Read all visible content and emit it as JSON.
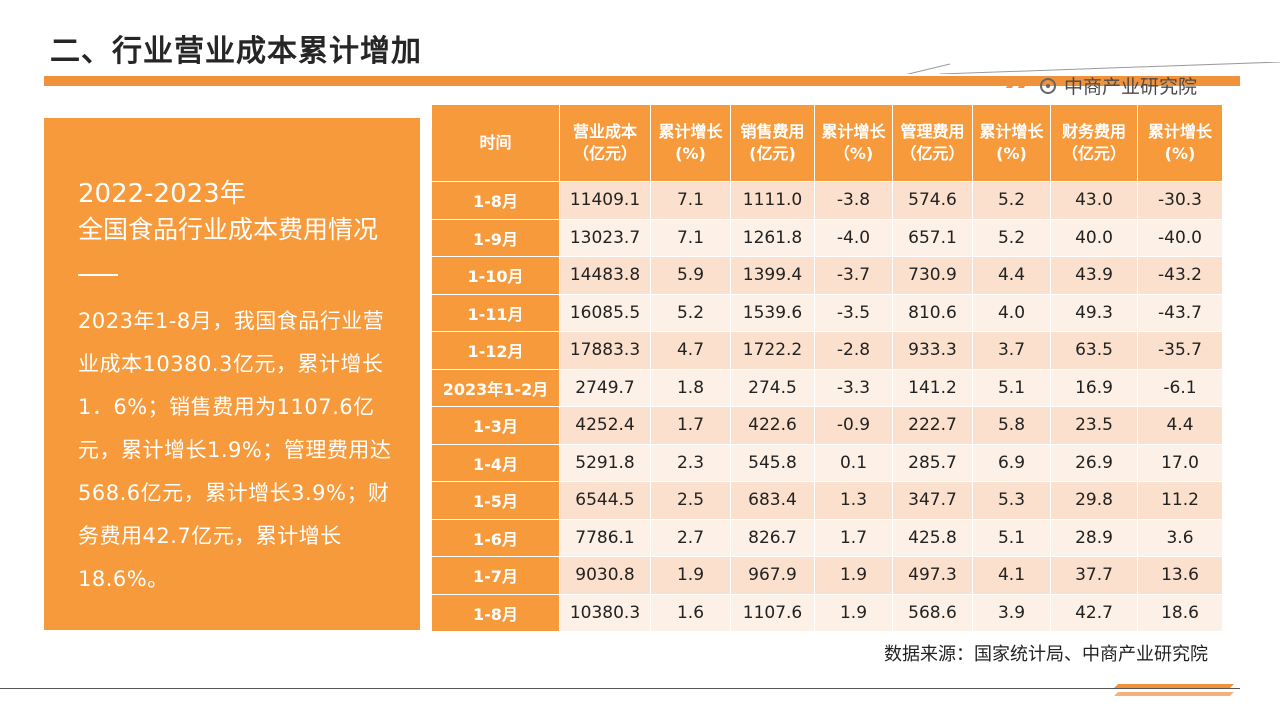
{
  "header": {
    "title": "二、行业营业成本累计增加",
    "brand": "中商产业研究院"
  },
  "side": {
    "year_range": "2022-2023年",
    "subtitle": "全国食品行业成本费用情况",
    "paragraph": "2023年1-8月，我国食品行业营业成本10380.3亿元，累计增长1．6%；销售费用为1107.6亿元，累计增长1.9%；管理费用达568.6亿元，累计增长3.9%；财务费用42.7亿元，累计增长18.6%。"
  },
  "table": {
    "headers": [
      "时间",
      "营业成本（亿元）",
      "累计增长(%)",
      "销售费用(亿元)",
      "累计增长（%)",
      "管理费用（亿元）",
      "累计增长(%)",
      "财务费用（亿元）",
      "累计增长(%)"
    ],
    "rows": [
      [
        "1-8月",
        "11409.1",
        "7.1",
        "1111.0",
        "-3.8",
        "574.6",
        "5.2",
        "43.0",
        "-30.3"
      ],
      [
        "1-9月",
        "13023.7",
        "7.1",
        "1261.8",
        "-4.0",
        "657.1",
        "5.2",
        "40.0",
        "-40.0"
      ],
      [
        "1-10月",
        "14483.8",
        "5.9",
        "1399.4",
        "-3.7",
        "730.9",
        "4.4",
        "43.9",
        "-43.2"
      ],
      [
        "1-11月",
        "16085.5",
        "5.2",
        "1539.6",
        "-3.5",
        "810.6",
        "4.0",
        "49.3",
        "-43.7"
      ],
      [
        "1-12月",
        "17883.3",
        "4.7",
        "1722.2",
        "-2.8",
        "933.3",
        "3.7",
        "63.5",
        "-35.7"
      ],
      [
        "2023年1-2月",
        "2749.7",
        "1.8",
        "274.5",
        "-3.3",
        "141.2",
        "5.1",
        "16.9",
        "-6.1"
      ],
      [
        "1-3月",
        "4252.4",
        "1.7",
        "422.6",
        "-0.9",
        "222.7",
        "5.8",
        "23.5",
        "4.4"
      ],
      [
        "1-4月",
        "5291.8",
        "2.3",
        "545.8",
        "0.1",
        "285.7",
        "6.9",
        "26.9",
        "17.0"
      ],
      [
        "1-5月",
        "6544.5",
        "2.5",
        "683.4",
        "1.3",
        "347.7",
        "5.3",
        "29.8",
        "11.2"
      ],
      [
        "1-6月",
        "7786.1",
        "2.7",
        "826.7",
        "1.7",
        "425.8",
        "5.1",
        "28.9",
        "3.6"
      ],
      [
        "1-7月",
        "9030.8",
        "1.9",
        "967.9",
        "1.9",
        "497.3",
        "4.1",
        "37.7",
        "13.6"
      ],
      [
        "1-8月",
        "10380.3",
        "1.6",
        "1107.6",
        "1.9",
        "568.6",
        "3.9",
        "42.7",
        "18.6"
      ]
    ]
  },
  "footer": {
    "source": "数据来源：国家统计局、中商产业研究院"
  },
  "colors": {
    "accent": "#f79a3c",
    "row_dark": "#fbe1cd",
    "row_light": "#fdf0e6"
  }
}
